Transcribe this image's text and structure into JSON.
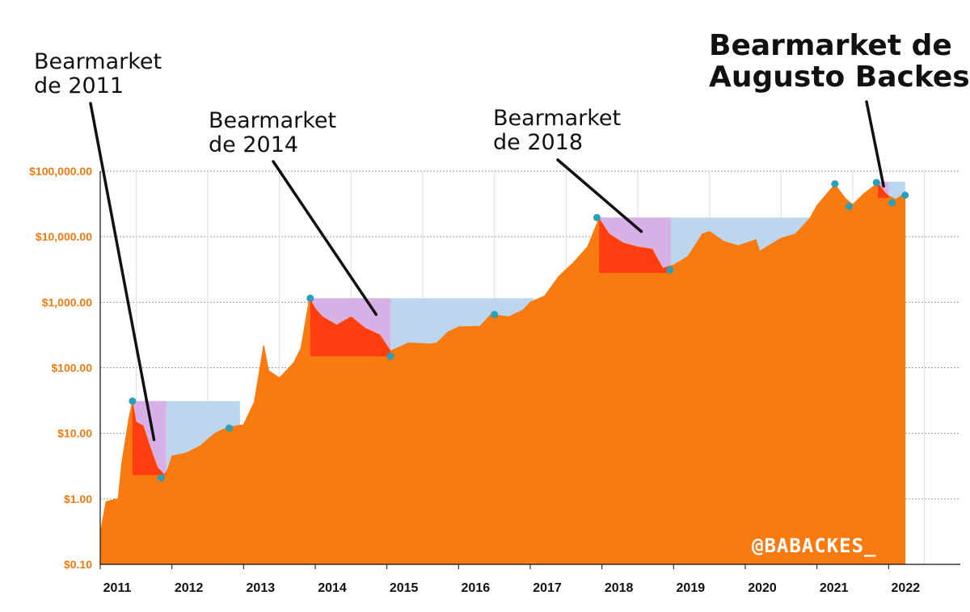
{
  "chart_data": {
    "type": "area",
    "scale": "log",
    "ylim": [
      0.1,
      100000
    ],
    "y_tick_labels": [
      "$100,000.00",
      "$10,000.00",
      "$1,000.00",
      "$100.00",
      "$10.00",
      "$1.00",
      "$0.10"
    ],
    "y_tick_values": [
      100000,
      10000,
      1000,
      100,
      10,
      1,
      0.1
    ],
    "x_tick_labels": [
      "2011",
      "2012",
      "2013",
      "2014",
      "2015",
      "2016",
      "2017",
      "2018",
      "2019",
      "2020",
      "2021",
      "2022"
    ],
    "x_tick_years": [
      2011,
      2012,
      2013,
      2014,
      2015,
      2016,
      2017,
      2018,
      2019,
      2020,
      2021,
      2022
    ],
    "xlim": [
      2011.0,
      2023.0
    ],
    "grid": true,
    "colors": {
      "area": "#f97a10",
      "bear_red": "#ff3d10",
      "bear_purple": "#d7b0e8",
      "recovery_blue": "#bcd6ee",
      "marker": "#2a9fb8",
      "axis_labels": "#f07a10",
      "grid": "#9a9a9a"
    },
    "series": [
      {
        "values": [
          [
            2011.0,
            0.3
          ],
          [
            2011.08,
            0.9
          ],
          [
            2011.15,
            0.95
          ],
          [
            2011.25,
            1.0
          ],
          [
            2011.3,
            3.5
          ],
          [
            2011.4,
            17
          ],
          [
            2011.45,
            31
          ],
          [
            2011.5,
            15
          ],
          [
            2011.6,
            13
          ],
          [
            2011.7,
            6
          ],
          [
            2011.8,
            3
          ],
          [
            2011.9,
            2.3
          ],
          [
            2011.95,
            3.0
          ],
          [
            2012.0,
            4.5
          ],
          [
            2012.2,
            5.0
          ],
          [
            2012.4,
            6.5
          ],
          [
            2012.6,
            10
          ],
          [
            2012.75,
            12
          ],
          [
            2012.9,
            13
          ],
          [
            2013.0,
            13.5
          ],
          [
            2013.15,
            30
          ],
          [
            2013.28,
            220
          ],
          [
            2013.35,
            90
          ],
          [
            2013.5,
            70
          ],
          [
            2013.7,
            120
          ],
          [
            2013.8,
            200
          ],
          [
            2013.92,
            1150
          ],
          [
            2014.0,
            800
          ],
          [
            2014.1,
            600
          ],
          [
            2014.3,
            450
          ],
          [
            2014.5,
            600
          ],
          [
            2014.7,
            400
          ],
          [
            2014.9,
            320
          ],
          [
            2015.05,
            180
          ],
          [
            2015.3,
            240
          ],
          [
            2015.6,
            230
          ],
          [
            2015.7,
            240
          ],
          [
            2015.85,
            350
          ],
          [
            2016.0,
            420
          ],
          [
            2016.3,
            430
          ],
          [
            2016.45,
            650
          ],
          [
            2016.7,
            600
          ],
          [
            2016.9,
            760
          ],
          [
            2017.0,
            1000
          ],
          [
            2017.2,
            1250
          ],
          [
            2017.4,
            2500
          ],
          [
            2017.6,
            4000
          ],
          [
            2017.8,
            7000
          ],
          [
            2017.96,
            19000
          ],
          [
            2018.1,
            11000
          ],
          [
            2018.3,
            8000
          ],
          [
            2018.5,
            7000
          ],
          [
            2018.7,
            6500
          ],
          [
            2018.85,
            3300
          ],
          [
            2019.0,
            3700
          ],
          [
            2019.2,
            5000
          ],
          [
            2019.4,
            11000
          ],
          [
            2019.5,
            12000
          ],
          [
            2019.7,
            8500
          ],
          [
            2019.9,
            7300
          ],
          [
            2020.15,
            9000
          ],
          [
            2020.2,
            6000
          ],
          [
            2020.5,
            9500
          ],
          [
            2020.7,
            11000
          ],
          [
            2020.9,
            19000
          ],
          [
            2021.0,
            30000
          ],
          [
            2021.25,
            63000
          ],
          [
            2021.4,
            38000
          ],
          [
            2021.5,
            31000
          ],
          [
            2021.65,
            45000
          ],
          [
            2021.85,
            66000
          ],
          [
            2021.95,
            47000
          ],
          [
            2022.0,
            42000
          ],
          [
            2022.1,
            37000
          ],
          [
            2022.2,
            44000
          ],
          [
            2022.23,
            45000
          ]
        ]
      }
    ],
    "bear_markets": [
      {
        "peak_year": 2011.45,
        "bottom_year": 2011.92,
        "recovery_year": 2012.95,
        "top_value": 31,
        "bottom_value": 2.3
      },
      {
        "peak_year": 2013.93,
        "bottom_year": 2015.05,
        "recovery_year": 2017.05,
        "top_value": 1150,
        "bottom_value": 150
      },
      {
        "peak_year": 2017.96,
        "bottom_year": 2018.96,
        "recovery_year": 2020.9,
        "top_value": 19600,
        "bottom_value": 2800
      },
      {
        "peak_year": 2021.85,
        "bottom_year": 2022.0,
        "recovery_year": 2022.23,
        "top_value": 69000,
        "bottom_value": 39000
      }
    ],
    "markers": [
      [
        2011.45,
        31
      ],
      [
        2011.85,
        2.1
      ],
      [
        2012.8,
        12
      ],
      [
        2013.93,
        1150
      ],
      [
        2015.05,
        150
      ],
      [
        2016.5,
        650
      ],
      [
        2017.93,
        19600
      ],
      [
        2018.95,
        3100
      ],
      [
        2021.25,
        64000
      ],
      [
        2021.45,
        29000
      ],
      [
        2021.83,
        67000
      ],
      [
        2022.05,
        33000
      ],
      [
        2022.23,
        43000
      ]
    ],
    "annotations": [
      {
        "text": "Bearmarket\nde 2011",
        "target_year": 2011.75,
        "target_value": 8
      },
      {
        "text": "Bearmarket\nde 2014",
        "target_year": 2014.85,
        "target_value": 650
      },
      {
        "text": "Bearmarket\nde 2018",
        "target_year": 2018.55,
        "target_value": 12000
      },
      {
        "text": "Bearmarket de\nAugusto Backes",
        "target_year": 2021.93,
        "target_value": 59000
      }
    ],
    "watermark": "@BABACKES_"
  }
}
